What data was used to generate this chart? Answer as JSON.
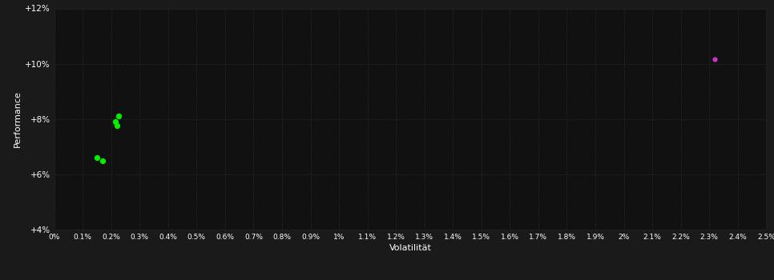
{
  "background_color": "#1a1a1a",
  "plot_bg_color": "#111111",
  "grid_color": "#333333",
  "text_color": "#ffffff",
  "xlabel": "Volatilität",
  "ylabel": "Performance",
  "xlim": [
    0.0,
    0.025
  ],
  "ylim": [
    0.04,
    0.12
  ],
  "ytick_values": [
    0.04,
    0.06,
    0.08,
    0.1,
    0.12
  ],
  "ytick_labels": [
    "+4%",
    "+6%",
    "+8%",
    "+10%",
    "+12%"
  ],
  "green_points": [
    [
      0.0017,
      0.0648
    ],
    [
      0.0015,
      0.066
    ],
    [
      0.00215,
      0.079
    ],
    [
      0.00225,
      0.081
    ],
    [
      0.0022,
      0.0775
    ]
  ],
  "magenta_points": [
    [
      0.0232,
      0.1015
    ]
  ],
  "green_color": "#00ee00",
  "magenta_color": "#cc33cc",
  "point_size_green": 18,
  "point_size_magenta": 12
}
